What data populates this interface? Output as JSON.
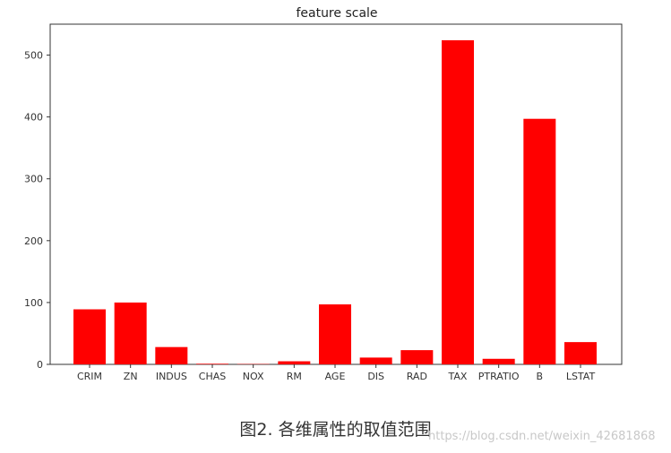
{
  "chart_data": {
    "type": "bar",
    "title": "feature scale",
    "xlabel": "",
    "ylabel": "",
    "categories": [
      "CRIM",
      "ZN",
      "INDUS",
      "CHAS",
      "NOX",
      "RM",
      "AGE",
      "DIS",
      "RAD",
      "TAX",
      "PTRATIO",
      "B",
      "LSTAT"
    ],
    "values": [
      89,
      100,
      28,
      1,
      0.5,
      5,
      97,
      11,
      23,
      524,
      9,
      397,
      36
    ],
    "yticks": [
      0,
      100,
      200,
      300,
      400,
      500
    ],
    "ylim": [
      0,
      550
    ],
    "grid": false,
    "bar_color": "#ff0000"
  },
  "caption": "图2. 各维属性的取值范围",
  "watermark": "https://blog.csdn.net/weixin_42681868"
}
